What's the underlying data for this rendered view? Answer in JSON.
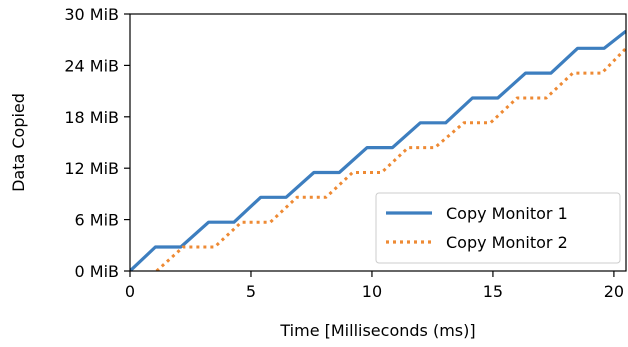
{
  "chart_data": {
    "type": "line",
    "xlabel": "Time [Milliseconds (ms)]",
    "ylabel": "Data Copied",
    "xlim": [
      0,
      20.5
    ],
    "ylim": [
      0,
      30
    ],
    "x_ticks": [
      0,
      5,
      10,
      15,
      20
    ],
    "x_tick_labels": [
      "0",
      "5",
      "10",
      "15",
      "20"
    ],
    "y_ticks": [
      0,
      6,
      12,
      18,
      24,
      30
    ],
    "y_tick_labels": [
      "0 MiB",
      "6 MiB",
      "12 MiB",
      "18 MiB",
      "24 MiB",
      "30 MiB"
    ],
    "grid": false,
    "legend_position": "bottom-right",
    "series": [
      {
        "name": "Copy Monitor 1",
        "color": "#3d7ebf",
        "style": "solid",
        "x": [
          0,
          1.05,
          2.1,
          3.25,
          4.3,
          5.4,
          6.45,
          7.6,
          8.65,
          9.8,
          10.85,
          12.0,
          13.05,
          14.15,
          15.2,
          16.35,
          17.4,
          18.5,
          19.6,
          20.5
        ],
        "y": [
          0,
          2.8,
          2.8,
          5.7,
          5.7,
          8.6,
          8.6,
          11.5,
          11.5,
          14.4,
          14.4,
          17.3,
          17.3,
          20.2,
          20.2,
          23.1,
          23.1,
          26.0,
          26.0,
          28.0
        ]
      },
      {
        "name": "Copy Monitor 2",
        "color": "#ee8a34",
        "style": "dotted",
        "x": [
          1.1,
          2.2,
          3.5,
          4.6,
          5.8,
          6.9,
          8.1,
          9.2,
          10.4,
          11.5,
          12.6,
          13.8,
          14.9,
          16.0,
          17.2,
          18.3,
          19.5,
          20.5
        ],
        "y": [
          0,
          2.8,
          2.8,
          5.7,
          5.7,
          8.6,
          8.6,
          11.5,
          11.5,
          14.4,
          14.4,
          17.3,
          17.3,
          20.2,
          20.2,
          23.1,
          23.1,
          26.0
        ]
      }
    ]
  }
}
